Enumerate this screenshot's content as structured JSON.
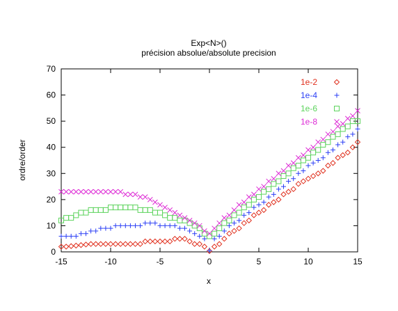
{
  "chart_data": {
    "type": "scatter",
    "title": "Exp<N>()",
    "subtitle": "précision absolue/absolute precision",
    "xlabel": "x",
    "ylabel": "ordre/order",
    "xlim": [
      -15,
      15
    ],
    "ylim": [
      0,
      70
    ],
    "xticks": [
      -15,
      -10,
      -5,
      0,
      5,
      10,
      15
    ],
    "yticks": [
      0,
      10,
      20,
      30,
      40,
      50,
      60,
      70
    ],
    "grid": false,
    "legend_position": "top-right",
    "series": [
      {
        "name": "1e-2",
        "marker": "diamond",
        "color": "#e0301e",
        "points": [
          [
            -15,
            2
          ],
          [
            -14.5,
            2
          ],
          [
            -14,
            2.2
          ],
          [
            -13.5,
            2.4
          ],
          [
            -13,
            2.6
          ],
          [
            -12.5,
            2.8
          ],
          [
            -12,
            3
          ],
          [
            -11.5,
            3
          ],
          [
            -11,
            3
          ],
          [
            -10.5,
            3
          ],
          [
            -10,
            3
          ],
          [
            -9.5,
            3
          ],
          [
            -9,
            3
          ],
          [
            -8.5,
            3
          ],
          [
            -8,
            3
          ],
          [
            -7.5,
            3
          ],
          [
            -7,
            3
          ],
          [
            -6.5,
            4
          ],
          [
            -6,
            4
          ],
          [
            -5.5,
            4
          ],
          [
            -5,
            4
          ],
          [
            -4.5,
            4
          ],
          [
            -4,
            4
          ],
          [
            -3.5,
            5
          ],
          [
            -3,
            5
          ],
          [
            -2.5,
            5
          ],
          [
            -2,
            4
          ],
          [
            -1.5,
            3
          ],
          [
            -1,
            3
          ],
          [
            -0.5,
            2
          ],
          [
            0,
            0.3
          ],
          [
            0.5,
            2
          ],
          [
            1,
            3
          ],
          [
            1.5,
            5
          ],
          [
            2,
            7
          ],
          [
            2.5,
            8
          ],
          [
            3,
            9
          ],
          [
            3.5,
            11
          ],
          [
            4,
            12
          ],
          [
            4.5,
            14
          ],
          [
            5,
            15
          ],
          [
            5.5,
            16
          ],
          [
            6,
            18
          ],
          [
            6.5,
            19
          ],
          [
            7,
            20
          ],
          [
            7.5,
            22
          ],
          [
            8,
            23
          ],
          [
            8.5,
            24
          ],
          [
            9,
            26
          ],
          [
            9.5,
            27
          ],
          [
            10,
            28
          ],
          [
            10.5,
            29
          ],
          [
            11,
            30
          ],
          [
            11.5,
            31
          ],
          [
            12,
            33
          ],
          [
            12.5,
            34
          ],
          [
            13,
            36
          ],
          [
            13.5,
            37
          ],
          [
            14,
            38
          ],
          [
            14.5,
            40
          ],
          [
            15,
            42
          ]
        ]
      },
      {
        "name": "1e-4",
        "marker": "plus",
        "color": "#2b3ff5",
        "points": [
          [
            -15,
            6
          ],
          [
            -14.5,
            6
          ],
          [
            -14,
            6
          ],
          [
            -13.5,
            6
          ],
          [
            -13,
            7
          ],
          [
            -12.5,
            7
          ],
          [
            -12,
            8
          ],
          [
            -11.5,
            8
          ],
          [
            -11,
            9
          ],
          [
            -10.5,
            9
          ],
          [
            -10,
            9
          ],
          [
            -9.5,
            10
          ],
          [
            -9,
            10
          ],
          [
            -8.5,
            10
          ],
          [
            -8,
            10
          ],
          [
            -7.5,
            10
          ],
          [
            -7,
            10
          ],
          [
            -6.5,
            11
          ],
          [
            -6,
            11
          ],
          [
            -5.5,
            11
          ],
          [
            -5,
            10
          ],
          [
            -4.5,
            10
          ],
          [
            -4,
            10
          ],
          [
            -3.5,
            10
          ],
          [
            -3,
            9
          ],
          [
            -2.5,
            9
          ],
          [
            -2,
            8
          ],
          [
            -1.5,
            7
          ],
          [
            -1,
            6
          ],
          [
            -0.5,
            5
          ],
          [
            0,
            0.5
          ],
          [
            0.5,
            5
          ],
          [
            1,
            6
          ],
          [
            1.5,
            8
          ],
          [
            2,
            10
          ],
          [
            2.5,
            11
          ],
          [
            3,
            12
          ],
          [
            3.5,
            14
          ],
          [
            4,
            15
          ],
          [
            4.5,
            17
          ],
          [
            5,
            18
          ],
          [
            5.5,
            19
          ],
          [
            6,
            21
          ],
          [
            6.5,
            22
          ],
          [
            7,
            24
          ],
          [
            7.5,
            25
          ],
          [
            8,
            27
          ],
          [
            8.5,
            28
          ],
          [
            9,
            30
          ],
          [
            9.5,
            31
          ],
          [
            10,
            33
          ],
          [
            10.5,
            34
          ],
          [
            11,
            35
          ],
          [
            11.5,
            36
          ],
          [
            12,
            38
          ],
          [
            12.5,
            39
          ],
          [
            13,
            41
          ],
          [
            13.5,
            42
          ],
          [
            14,
            44
          ],
          [
            14.5,
            45
          ],
          [
            15,
            47
          ]
        ]
      },
      {
        "name": "1e-6",
        "marker": "square",
        "color": "#5cd35c",
        "points": [
          [
            -15,
            12
          ],
          [
            -14.5,
            13
          ],
          [
            -14,
            13
          ],
          [
            -13.5,
            14
          ],
          [
            -13,
            15
          ],
          [
            -12.5,
            15
          ],
          [
            -12,
            16
          ],
          [
            -11.5,
            16
          ],
          [
            -11,
            16
          ],
          [
            -10.5,
            16
          ],
          [
            -10,
            17
          ],
          [
            -9.5,
            17
          ],
          [
            -9,
            17
          ],
          [
            -8.5,
            17
          ],
          [
            -8,
            17
          ],
          [
            -7.5,
            17
          ],
          [
            -7,
            16
          ],
          [
            -6.5,
            16
          ],
          [
            -6,
            16
          ],
          [
            -5.5,
            15
          ],
          [
            -5,
            15
          ],
          [
            -4.5,
            14
          ],
          [
            -4,
            13
          ],
          [
            -3.5,
            13
          ],
          [
            -3,
            12
          ],
          [
            -2.5,
            12
          ],
          [
            -2,
            11
          ],
          [
            -1.5,
            10
          ],
          [
            -1,
            9
          ],
          [
            -0.5,
            7
          ],
          [
            0,
            6
          ],
          [
            0.5,
            7
          ],
          [
            1,
            9
          ],
          [
            1.5,
            11
          ],
          [
            2,
            12
          ],
          [
            2.5,
            14
          ],
          [
            3,
            15
          ],
          [
            3.5,
            17
          ],
          [
            4,
            18
          ],
          [
            4.5,
            20
          ],
          [
            5,
            21
          ],
          [
            5.5,
            23
          ],
          [
            6,
            24
          ],
          [
            6.5,
            26
          ],
          [
            7,
            27
          ],
          [
            7.5,
            29
          ],
          [
            8,
            30
          ],
          [
            8.5,
            32
          ],
          [
            9,
            33
          ],
          [
            9.5,
            35
          ],
          [
            10,
            36
          ],
          [
            10.5,
            38
          ],
          [
            11,
            39
          ],
          [
            11.5,
            41
          ],
          [
            12,
            42
          ],
          [
            12.5,
            44
          ],
          [
            13,
            45
          ],
          [
            13.5,
            47
          ],
          [
            14,
            48
          ],
          [
            14.5,
            50
          ],
          [
            15,
            50
          ]
        ]
      },
      {
        "name": "1e-8",
        "marker": "cross",
        "color": "#dd2ad5",
        "points": [
          [
            -15,
            23
          ],
          [
            -14.5,
            23
          ],
          [
            -14,
            23
          ],
          [
            -13.5,
            23
          ],
          [
            -13,
            23
          ],
          [
            -12.5,
            23
          ],
          [
            -12,
            23
          ],
          [
            -11.5,
            23
          ],
          [
            -11,
            23
          ],
          [
            -10.5,
            23
          ],
          [
            -10,
            23
          ],
          [
            -9.5,
            23
          ],
          [
            -9,
            23
          ],
          [
            -8.5,
            22
          ],
          [
            -8,
            22
          ],
          [
            -7.5,
            22
          ],
          [
            -7,
            21
          ],
          [
            -6.5,
            21
          ],
          [
            -6,
            20
          ],
          [
            -5.5,
            19
          ],
          [
            -5,
            18
          ],
          [
            -4.5,
            17
          ],
          [
            -4,
            16
          ],
          [
            -3.5,
            15
          ],
          [
            -3,
            14
          ],
          [
            -2.5,
            13
          ],
          [
            -2,
            12
          ],
          [
            -1.5,
            11
          ],
          [
            -1,
            10
          ],
          [
            -0.5,
            8
          ],
          [
            0,
            7
          ],
          [
            0.5,
            9
          ],
          [
            1,
            11
          ],
          [
            1.5,
            13
          ],
          [
            2,
            14
          ],
          [
            2.5,
            16
          ],
          [
            3,
            18
          ],
          [
            3.5,
            19
          ],
          [
            4,
            21
          ],
          [
            4.5,
            22
          ],
          [
            5,
            24
          ],
          [
            5.5,
            25
          ],
          [
            6,
            27
          ],
          [
            6.5,
            28
          ],
          [
            7,
            30
          ],
          [
            7.5,
            31
          ],
          [
            8,
            33
          ],
          [
            8.5,
            34
          ],
          [
            9,
            36
          ],
          [
            9.5,
            37
          ],
          [
            10,
            39
          ],
          [
            10.5,
            40
          ],
          [
            11,
            42
          ],
          [
            11.5,
            43
          ],
          [
            12,
            45
          ],
          [
            12.5,
            46
          ],
          [
            13,
            48
          ],
          [
            13.5,
            49
          ],
          [
            14,
            51
          ],
          [
            14.5,
            52
          ],
          [
            15,
            54
          ]
        ]
      }
    ]
  }
}
